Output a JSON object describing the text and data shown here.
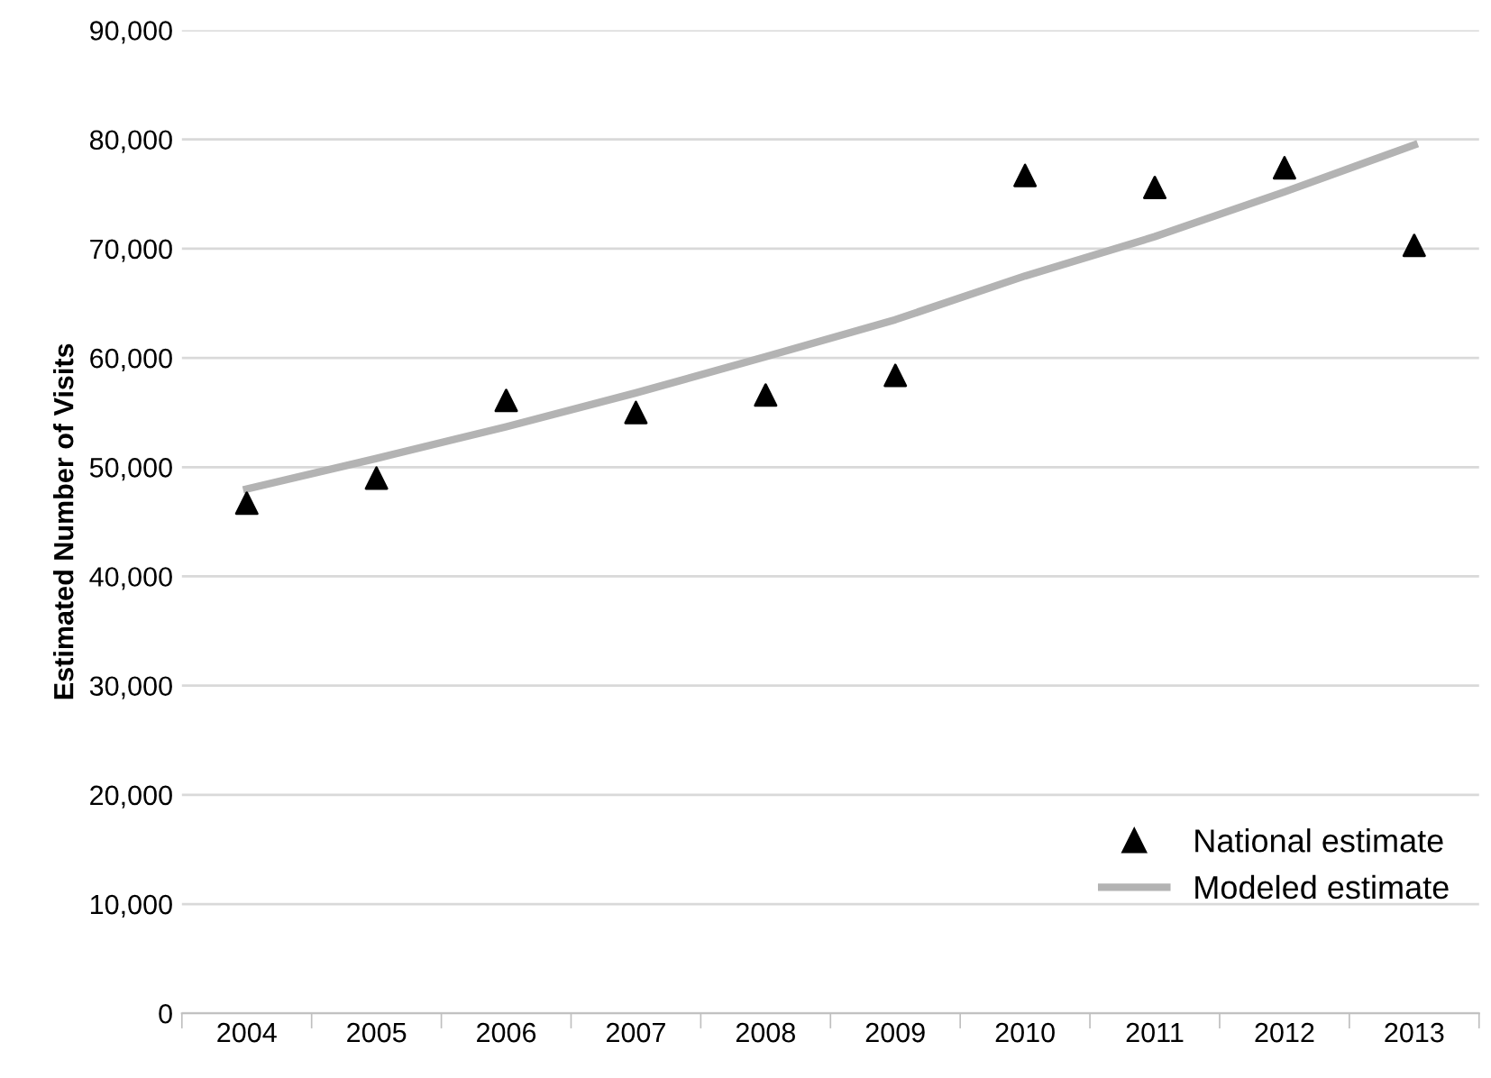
{
  "chart_data": {
    "type": "scatter",
    "ylabel": "Estimated Number of Visits",
    "categories": [
      "2004",
      "2005",
      "2006",
      "2007",
      "2008",
      "2009",
      "2010",
      "2011",
      "2012",
      "2013"
    ],
    "series": [
      {
        "name": "National estimate",
        "color": "#000000",
        "marker": "triangle",
        "values": [
          46700,
          49000,
          56100,
          55000,
          56600,
          58400,
          76700,
          75600,
          77400,
          70300
        ]
      },
      {
        "name": "Modeled estimate",
        "type": "line",
        "color": "#b3b3b3",
        "marker": "none",
        "line_style": "solid",
        "values": [
          48000,
          50800,
          53700,
          56800,
          60100,
          63500,
          67500,
          71100,
          75200,
          79500
        ]
      }
    ],
    "ylim": [
      0,
      90000
    ],
    "yticks": [
      {
        "value": 0,
        "label": "0"
      },
      {
        "value": 10000,
        "label": "10,000"
      },
      {
        "value": 20000,
        "label": "20,000"
      },
      {
        "value": 30000,
        "label": "30,000"
      },
      {
        "value": 40000,
        "label": "40,000"
      },
      {
        "value": 50000,
        "label": "50,000"
      },
      {
        "value": 60000,
        "label": "60,000"
      },
      {
        "value": 70000,
        "label": "70,000"
      },
      {
        "value": 80000,
        "label": "80,000"
      },
      {
        "value": 90000,
        "label": "90,000"
      }
    ],
    "grid": "y",
    "legend": "bottom right"
  }
}
